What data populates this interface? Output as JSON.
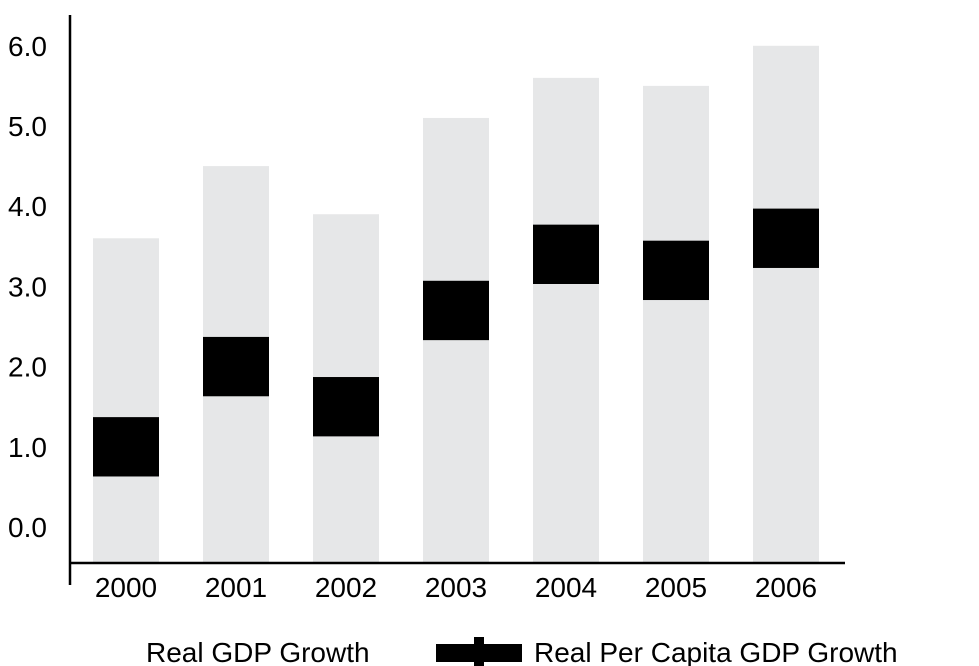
{
  "chart_data": {
    "type": "bar",
    "categories": [
      "2000",
      "2001",
      "2002",
      "2003",
      "2004",
      "2005",
      "2006"
    ],
    "series": [
      {
        "name": "Real GDP Growth",
        "values": [
          3.6,
          4.5,
          3.9,
          5.1,
          5.6,
          5.5,
          6.0
        ],
        "color": "#e6e7e8"
      },
      {
        "name": "Real Per Capita GDP Growth",
        "values": [
          1.0,
          2.0,
          1.5,
          2.7,
          3.4,
          3.2,
          3.6
        ],
        "color": "#000000"
      }
    ],
    "y_ticks": [
      "0.0",
      "1.0",
      "2.0",
      "3.0",
      "4.0",
      "5.0",
      "6.0"
    ],
    "ylim": [
      -0.4,
      6.4
    ],
    "grid": false,
    "legend_position": "bottom"
  }
}
